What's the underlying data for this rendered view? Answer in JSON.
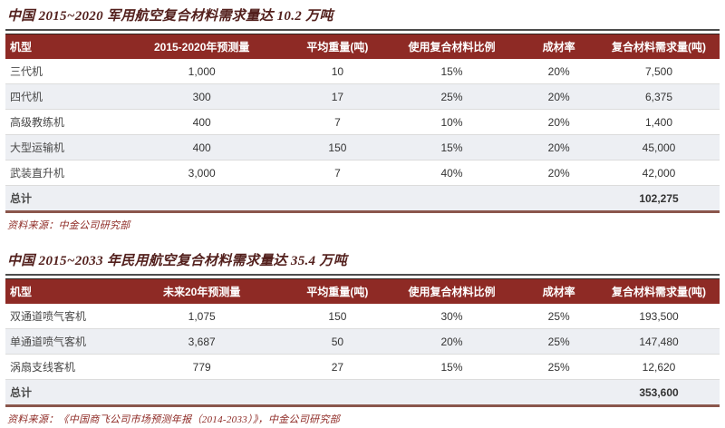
{
  "colors": {
    "header_bg": "#8e2a25",
    "header_text": "#ffffff",
    "title_text": "#53201d",
    "source_text": "#8e2a25",
    "row_alt_bg": "#edeff3",
    "row_text": "#333333",
    "title_rule": "#4d4d4d",
    "double_rule": "#8a564c"
  },
  "sections": [
    {
      "title": "中国 2015~2020 军用航空复合材料需求量达 10.2 万吨",
      "source": "资料来源：中金公司研究部",
      "table": {
        "headers": [
          "机型",
          "2015-2020年预测量",
          "平均重量(吨)",
          "使用复合材料比例",
          "成材率",
          "复合材料需求量(吨)"
        ],
        "rows": [
          [
            "三代机",
            "1,000",
            "10",
            "15%",
            "20%",
            "7,500"
          ],
          [
            "四代机",
            "300",
            "17",
            "25%",
            "20%",
            "6,375"
          ],
          [
            "高级教练机",
            "400",
            "7",
            "10%",
            "20%",
            "1,400"
          ],
          [
            "大型运输机",
            "400",
            "150",
            "15%",
            "20%",
            "45,000"
          ],
          [
            "武装直升机",
            "3,000",
            "7",
            "40%",
            "20%",
            "42,000"
          ]
        ],
        "total_row": [
          "总计",
          "",
          "",
          "",
          "",
          "102,275"
        ]
      }
    },
    {
      "title": "中国 2015~2033 年民用航空复合材料需求量达 35.4 万吨",
      "source": "资料来源：《中国商飞公司市场预测年报（2014-2033）》，中金公司研究部",
      "table": {
        "headers": [
          "机型",
          "未来20年预测量",
          "平均重量(吨)",
          "使用复合材料比例",
          "成材率",
          "复合材料需求量(吨)"
        ],
        "rows": [
          [
            "双通道喷气客机",
            "1,075",
            "150",
            "30%",
            "25%",
            "193,500"
          ],
          [
            "单通道喷气客机",
            "3,687",
            "50",
            "20%",
            "25%",
            "147,480"
          ],
          [
            "涡扇支线客机",
            "779",
            "27",
            "15%",
            "25%",
            "12,620"
          ]
        ],
        "total_row": [
          "总计",
          "",
          "",
          "",
          "",
          "353,600"
        ]
      }
    }
  ]
}
